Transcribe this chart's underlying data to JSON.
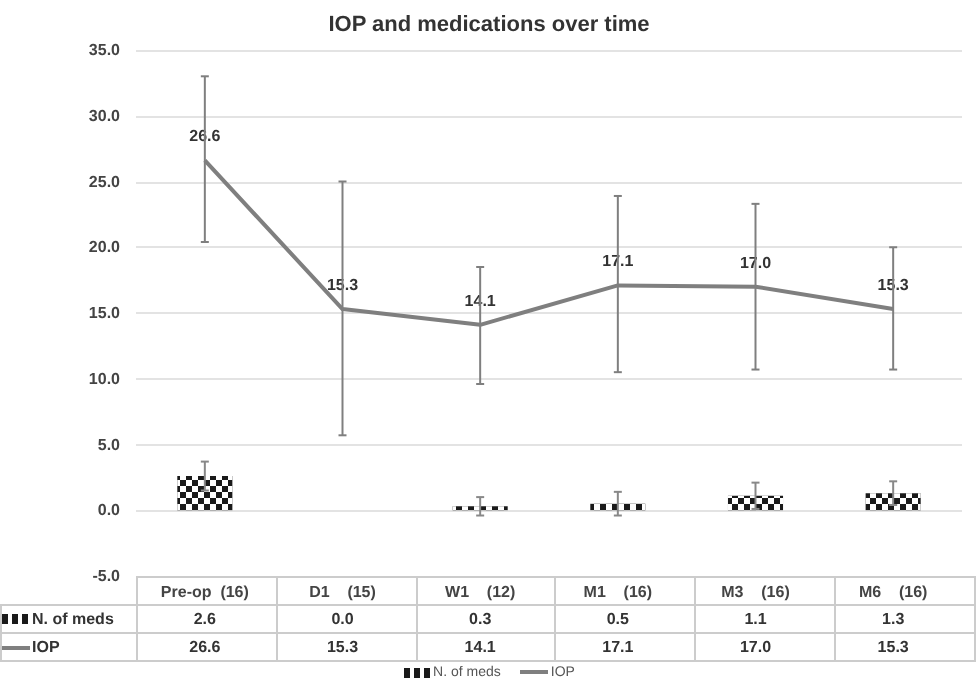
{
  "chart_data": {
    "type": "bar",
    "title": "IOP and medications over time",
    "categories": [
      "Pre-op  (16)",
      "D1    (15)",
      "W1    (12)",
      "M1    (16)",
      "M3    (16)",
      "M6    (16)"
    ],
    "series": [
      {
        "name": "N. of meds",
        "color": "#1a1a1a",
        "values": [
          2.6,
          0.0,
          0.3,
          0.5,
          1.1,
          1.3
        ],
        "value_labels": [
          "2.6",
          "0.0",
          "0.3",
          "0.5",
          "1.1",
          "1.3"
        ],
        "errors": [
          1.1,
          null,
          0.7,
          0.9,
          1.0,
          0.9
        ]
      },
      {
        "name": "IOP",
        "type": "line",
        "color": "#7f7f7f",
        "values": [
          26.6,
          15.3,
          14.1,
          17.1,
          17.0,
          15.3
        ],
        "value_labels": [
          "26.6",
          "15.3",
          "14.1",
          "17.1",
          "17.0",
          "15.3"
        ],
        "errors": [
          [
            20.4,
            33.0
          ],
          [
            5.7,
            25.0
          ],
          [
            9.6,
            18.5
          ],
          [
            10.5,
            23.9
          ],
          [
            10.7,
            23.3
          ],
          [
            10.7,
            20.0
          ]
        ]
      }
    ],
    "ylim": [
      -5,
      35
    ],
    "yticks": [
      {
        "value": -5,
        "label": "-5.0"
      },
      {
        "value": 0,
        "label": "0.0"
      },
      {
        "value": 5,
        "label": "5.0"
      },
      {
        "value": 10,
        "label": "10.0"
      },
      {
        "value": 15,
        "label": "15.0"
      },
      {
        "value": 20,
        "label": "20.0"
      },
      {
        "value": 25,
        "label": "25.0"
      },
      {
        "value": 30,
        "label": "30.0"
      },
      {
        "value": 35,
        "label": "35.0"
      }
    ],
    "grid": "y",
    "legend": "bottom",
    "marker": "none"
  }
}
